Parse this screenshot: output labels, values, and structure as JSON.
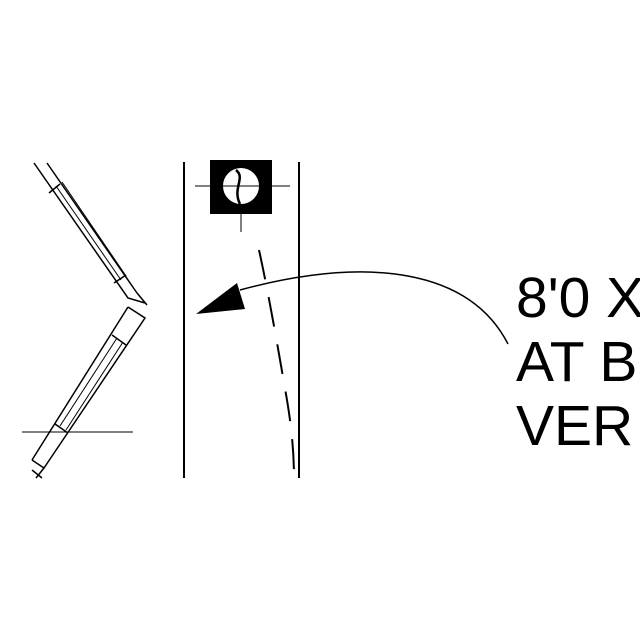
{
  "note": {
    "lines": [
      "8'0 X",
      "AT B",
      "VER"
    ]
  },
  "colors": {
    "ink": "#000000",
    "paper": "#ffffff"
  }
}
